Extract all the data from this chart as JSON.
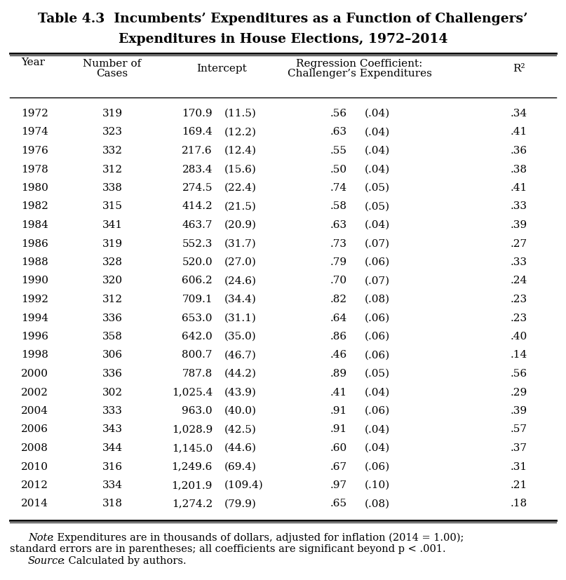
{
  "title_line1": "Table 4.3  Incumbents’ Expenditures as a Function of Challengers’",
  "title_line2": "Expenditures in House Elections, 1972–2014",
  "rows": [
    [
      "1972",
      "319",
      "170.9",
      "(11.5)",
      ".56",
      "(.04)",
      ".34"
    ],
    [
      "1974",
      "323",
      "169.4",
      "(12.2)",
      ".63",
      "(.04)",
      ".41"
    ],
    [
      "1976",
      "332",
      "217.6",
      "(12.4)",
      ".55",
      "(.04)",
      ".36"
    ],
    [
      "1978",
      "312",
      "283.4",
      "(15.6)",
      ".50",
      "(.04)",
      ".38"
    ],
    [
      "1980",
      "338",
      "274.5",
      "(22.4)",
      ".74",
      "(.05)",
      ".41"
    ],
    [
      "1982",
      "315",
      "414.2",
      "(21.5)",
      ".58",
      "(.05)",
      ".33"
    ],
    [
      "1984",
      "341",
      "463.7",
      "(20.9)",
      ".63",
      "(.04)",
      ".39"
    ],
    [
      "1986",
      "319",
      "552.3",
      "(31.7)",
      ".73",
      "(.07)",
      ".27"
    ],
    [
      "1988",
      "328",
      "520.0",
      "(27.0)",
      ".79",
      "(.06)",
      ".33"
    ],
    [
      "1990",
      "320",
      "606.2",
      "(24.6)",
      ".70",
      "(.07)",
      ".24"
    ],
    [
      "1992",
      "312",
      "709.1",
      "(34.4)",
      ".82",
      "(.08)",
      ".23"
    ],
    [
      "1994",
      "336",
      "653.0",
      "(31.1)",
      ".64",
      "(.06)",
      ".23"
    ],
    [
      "1996",
      "358",
      "642.0",
      "(35.0)",
      ".86",
      "(.06)",
      ".40"
    ],
    [
      "1998",
      "306",
      "800.7",
      "(46.7)",
      ".46",
      "(.06)",
      ".14"
    ],
    [
      "2000",
      "336",
      "787.8",
      "(44.2)",
      ".89",
      "(.05)",
      ".56"
    ],
    [
      "2002",
      "302",
      "1,025.4",
      "(43.9)",
      ".41",
      "(.04)",
      ".29"
    ],
    [
      "2004",
      "333",
      "963.0",
      "(40.0)",
      ".91",
      "(.06)",
      ".39"
    ],
    [
      "2006",
      "343",
      "1,028.9",
      "(42.5)",
      ".91",
      "(.04)",
      ".57"
    ],
    [
      "2008",
      "344",
      "1,145.0",
      "(44.6)",
      ".60",
      "(.04)",
      ".37"
    ],
    [
      "2010",
      "316",
      "1,249.6",
      "(69.4)",
      ".67",
      "(.06)",
      ".31"
    ],
    [
      "2012",
      "334",
      "1,201.9",
      "(109.4)",
      ".97",
      "(.10)",
      ".21"
    ],
    [
      "2014",
      "318",
      "1,274.2",
      "(79.9)",
      ".65",
      "(.08)",
      ".18"
    ]
  ],
  "note_italic": "Note",
  "note_text": ": Expenditures are in thousands of dollars, adjusted for inflation (2014 = 1.00);",
  "note_line2": "standard errors are in parentheses; all coefficients are significant beyond p < .001.",
  "source_italic": "Source",
  "source_text": ": Calculated by authors.",
  "bg_color": "#ffffff",
  "text_color": "#000000",
  "body_fontsize": 11.0,
  "title_fontsize": 13.5,
  "note_fontsize": 10.5
}
